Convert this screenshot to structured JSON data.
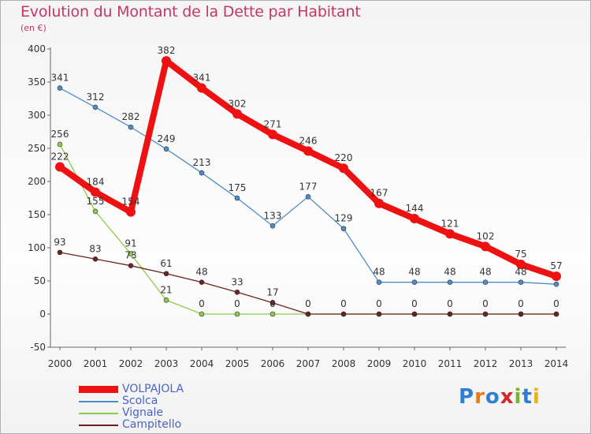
{
  "header": {
    "title": "Evolution du Montant de la Dette par Habitant",
    "subtitle": "(en €)"
  },
  "logo": {
    "text": "Proxiti"
  },
  "chart_data": {
    "type": "line",
    "title": "Evolution du Montant de la Dette par Habitant",
    "subtitle": "(en €)",
    "x": [
      "2000",
      "2001",
      "2002",
      "2003",
      "2004",
      "2005",
      "2006",
      "2007",
      "2008",
      "2009",
      "2010",
      "2011",
      "2012",
      "2013",
      "2014"
    ],
    "y_ticks": [
      -50,
      0,
      50,
      100,
      150,
      200,
      250,
      300,
      350,
      400
    ],
    "ylim": [
      -50,
      400
    ],
    "grid": false,
    "legend_position": "bottom-left",
    "series": [
      {
        "name": "VOLPAJOLA",
        "color": "#ee1111",
        "values": [
          222,
          184,
          154,
          382,
          341,
          302,
          271,
          246,
          220,
          167,
          144,
          121,
          102,
          75,
          57
        ],
        "point_labels": [
          "222",
          "184",
          "154",
          "382",
          "341",
          "302",
          "271",
          "246",
          "220",
          "167",
          "144",
          "121",
          "102",
          "75",
          "57"
        ]
      },
      {
        "name": "Scolca",
        "color": "#4d8cc6",
        "values": [
          341,
          312,
          282,
          249,
          213,
          175,
          133,
          177,
          129,
          48,
          48,
          48,
          48,
          48,
          45
        ],
        "point_labels": [
          "341",
          "312",
          "282",
          "249",
          "213",
          "175",
          "133",
          "177",
          "129",
          "48",
          "48",
          "48",
          "48",
          "48",
          ""
        ]
      },
      {
        "name": "Vignale",
        "color": "#8ccc4a",
        "values": [
          256,
          155,
          91,
          21,
          0,
          0,
          0,
          0,
          0,
          0,
          0,
          0,
          0,
          0,
          0
        ],
        "point_labels": [
          "256",
          "155",
          "91",
          "21",
          "0",
          "0",
          "0",
          "",
          "",
          "",
          "",
          "",
          "",
          "",
          ""
        ]
      },
      {
        "name": "Campitello",
        "color": "#6b2222",
        "values": [
          93,
          83,
          73,
          61,
          48,
          33,
          17,
          0,
          0,
          0,
          0,
          0,
          0,
          0,
          0
        ],
        "point_labels": [
          "93",
          "83",
          "73",
          "61",
          "48",
          "33",
          "17",
          "0",
          "0",
          "0",
          "0",
          "0",
          "0",
          "0",
          "0"
        ]
      }
    ]
  }
}
